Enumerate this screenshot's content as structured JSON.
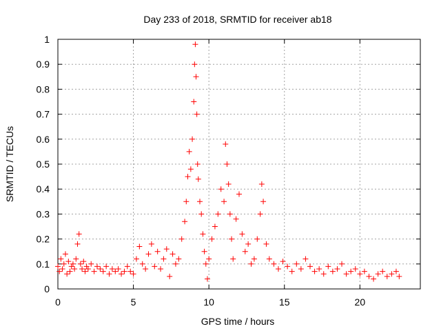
{
  "chart_data": {
    "type": "scatter",
    "title": "Day 233 of 2018, SRMTID for receiver ab18",
    "xlabel": "GPS time / hours",
    "ylabel": "SRMTID / TECUs",
    "xlim": [
      0,
      24
    ],
    "ylim": [
      0,
      1
    ],
    "xticks": [
      "0",
      "5",
      "10",
      "15",
      "20"
    ],
    "yticks": [
      "0",
      "0.1",
      "0.2",
      "0.3",
      "0.4",
      "0.5",
      "0.6",
      "0.7",
      "0.8",
      "0.9",
      "1"
    ],
    "grid": true,
    "marker": "+",
    "series": [
      {
        "name": "SRMTID",
        "color": "#ff0000",
        "x": [
          0.0,
          0.1,
          0.2,
          0.3,
          0.4,
          0.5,
          0.6,
          0.7,
          0.8,
          0.9,
          1.0,
          1.1,
          1.2,
          1.3,
          1.4,
          1.5,
          1.6,
          1.7,
          1.8,
          1.9,
          2.0,
          2.2,
          2.4,
          2.6,
          2.8,
          3.0,
          3.2,
          3.4,
          3.6,
          3.8,
          4.0,
          4.2,
          4.4,
          4.6,
          4.8,
          5.0,
          5.2,
          5.4,
          5.6,
          5.8,
          6.0,
          6.2,
          6.4,
          6.6,
          6.8,
          7.0,
          7.2,
          7.4,
          7.6,
          7.8,
          8.0,
          8.2,
          8.4,
          8.5,
          8.6,
          8.7,
          8.8,
          8.9,
          9.0,
          9.05,
          9.1,
          9.15,
          9.2,
          9.25,
          9.3,
          9.4,
          9.5,
          9.6,
          9.7,
          9.8,
          9.9,
          10.0,
          10.2,
          10.4,
          10.6,
          10.8,
          11.0,
          11.1,
          11.2,
          11.3,
          11.4,
          11.5,
          11.6,
          11.8,
          12.0,
          12.2,
          12.4,
          12.6,
          12.8,
          13.0,
          13.2,
          13.4,
          13.5,
          13.6,
          13.8,
          14.0,
          14.3,
          14.6,
          14.9,
          15.2,
          15.5,
          15.8,
          16.1,
          16.4,
          16.7,
          17.0,
          17.3,
          17.6,
          17.9,
          18.2,
          18.5,
          18.8,
          19.1,
          19.4,
          19.7,
          20.0,
          20.3,
          20.6,
          20.9,
          21.2,
          21.5,
          21.8,
          22.1,
          22.4,
          22.6
        ],
        "y": [
          0.09,
          0.07,
          0.12,
          0.08,
          0.1,
          0.14,
          0.06,
          0.11,
          0.07,
          0.09,
          0.1,
          0.08,
          0.12,
          0.18,
          0.22,
          0.1,
          0.08,
          0.11,
          0.07,
          0.09,
          0.08,
          0.1,
          0.07,
          0.09,
          0.08,
          0.07,
          0.09,
          0.06,
          0.08,
          0.07,
          0.08,
          0.06,
          0.07,
          0.09,
          0.07,
          0.06,
          0.12,
          0.17,
          0.1,
          0.08,
          0.14,
          0.18,
          0.09,
          0.15,
          0.08,
          0.12,
          0.16,
          0.05,
          0.14,
          0.1,
          0.12,
          0.2,
          0.27,
          0.35,
          0.45,
          0.55,
          0.48,
          0.6,
          0.75,
          0.9,
          0.98,
          0.85,
          0.7,
          0.5,
          0.44,
          0.35,
          0.3,
          0.22,
          0.15,
          0.1,
          0.04,
          0.12,
          0.2,
          0.25,
          0.3,
          0.4,
          0.35,
          0.58,
          0.5,
          0.42,
          0.3,
          0.2,
          0.12,
          0.28,
          0.38,
          0.22,
          0.15,
          0.18,
          0.1,
          0.12,
          0.2,
          0.3,
          0.42,
          0.35,
          0.18,
          0.12,
          0.1,
          0.08,
          0.11,
          0.09,
          0.07,
          0.1,
          0.08,
          0.12,
          0.09,
          0.07,
          0.08,
          0.06,
          0.09,
          0.07,
          0.08,
          0.1,
          0.06,
          0.07,
          0.08,
          0.06,
          0.07,
          0.05,
          0.04,
          0.06,
          0.07,
          0.05,
          0.06,
          0.07,
          0.05
        ]
      }
    ]
  }
}
